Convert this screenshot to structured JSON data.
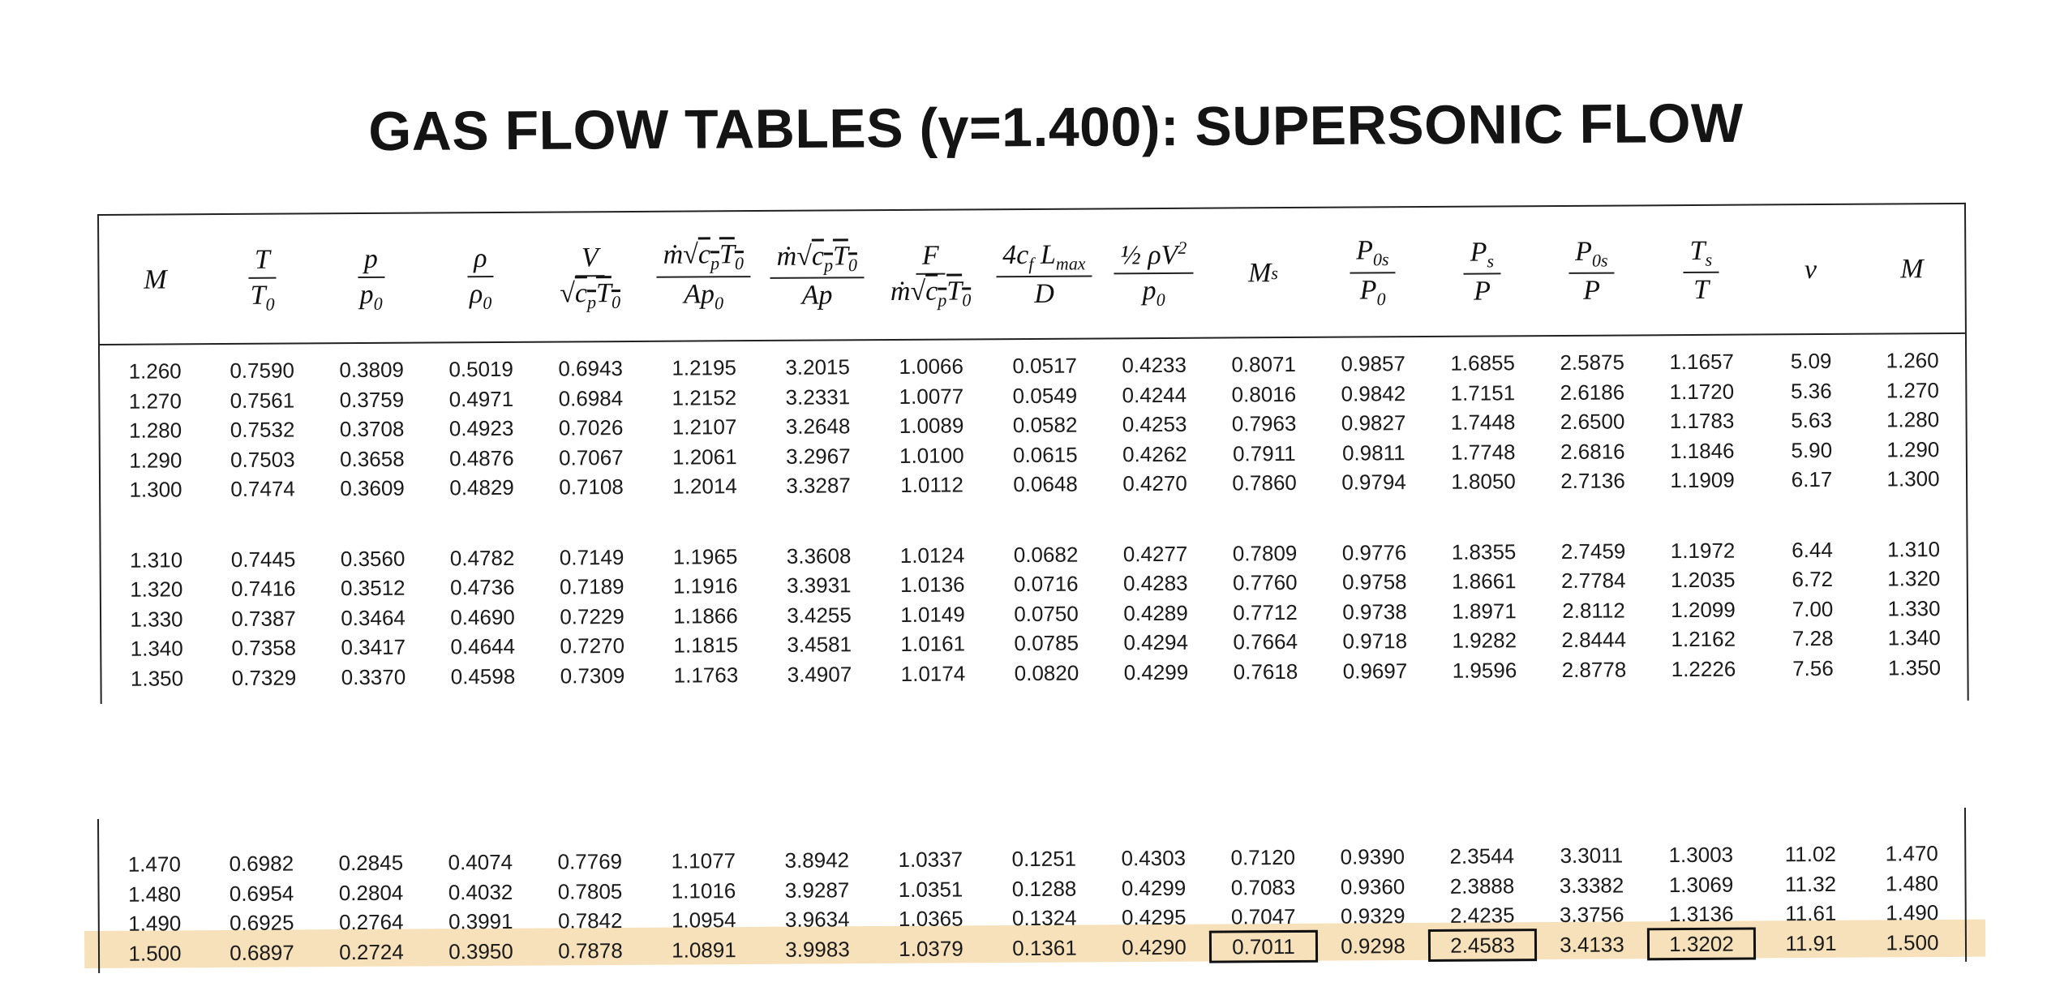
{
  "title": "GAS FLOW TABLES (γ=1.400): SUPERSONIC FLOW",
  "columns": [
    "M",
    "T/T0",
    "p/p0",
    "ρ/ρ0",
    "V/√(cpT0)",
    "ṁ√(cpT0)/(Ap0)",
    "ṁ√(cpT0)/(Ap)",
    "F/(ṁ√(cpT0))",
    "4cf Lmax/D",
    "(1/2)ρV²/p0",
    "Ms",
    "P0s/P0",
    "Ps/P",
    "P0s/P",
    "Ts/T",
    "ν",
    "M"
  ],
  "upper_rows": [
    [
      "1.260",
      "0.7590",
      "0.3809",
      "0.5019",
      "0.6943",
      "1.2195",
      "3.2015",
      "1.0066",
      "0.0517",
      "0.4233",
      "0.8071",
      "0.9857",
      "1.6855",
      "2.5875",
      "1.1657",
      "5.09",
      "1.260"
    ],
    [
      "1.270",
      "0.7561",
      "0.3759",
      "0.4971",
      "0.6984",
      "1.2152",
      "3.2331",
      "1.0077",
      "0.0549",
      "0.4244",
      "0.8016",
      "0.9842",
      "1.7151",
      "2.6186",
      "1.1720",
      "5.36",
      "1.270"
    ],
    [
      "1.280",
      "0.7532",
      "0.3708",
      "0.4923",
      "0.7026",
      "1.2107",
      "3.2648",
      "1.0089",
      "0.0582",
      "0.4253",
      "0.7963",
      "0.9827",
      "1.7448",
      "2.6500",
      "1.1783",
      "5.63",
      "1.280"
    ],
    [
      "1.290",
      "0.7503",
      "0.3658",
      "0.4876",
      "0.7067",
      "1.2061",
      "3.2967",
      "1.0100",
      "0.0615",
      "0.4262",
      "0.7911",
      "0.9811",
      "1.7748",
      "2.6816",
      "1.1846",
      "5.90",
      "1.290"
    ],
    [
      "1.300",
      "0.7474",
      "0.3609",
      "0.4829",
      "0.7108",
      "1.2014",
      "3.3287",
      "1.0112",
      "0.0648",
      "0.4270",
      "0.7860",
      "0.9794",
      "1.8050",
      "2.7136",
      "1.1909",
      "6.17",
      "1.300"
    ],
    [
      "1.310",
      "0.7445",
      "0.3560",
      "0.4782",
      "0.7149",
      "1.1965",
      "3.3608",
      "1.0124",
      "0.0682",
      "0.4277",
      "0.7809",
      "0.9776",
      "1.8355",
      "2.7459",
      "1.1972",
      "6.44",
      "1.310"
    ],
    [
      "1.320",
      "0.7416",
      "0.3512",
      "0.4736",
      "0.7189",
      "1.1916",
      "3.3931",
      "1.0136",
      "0.0716",
      "0.4283",
      "0.7760",
      "0.9758",
      "1.8661",
      "2.7784",
      "1.2035",
      "6.72",
      "1.320"
    ],
    [
      "1.330",
      "0.7387",
      "0.3464",
      "0.4690",
      "0.7229",
      "1.1866",
      "3.4255",
      "1.0149",
      "0.0750",
      "0.4289",
      "0.7712",
      "0.9738",
      "1.8971",
      "2.8112",
      "1.2099",
      "7.00",
      "1.330"
    ],
    [
      "1.340",
      "0.7358",
      "0.3417",
      "0.4644",
      "0.7270",
      "1.1815",
      "3.4581",
      "1.0161",
      "0.0785",
      "0.4294",
      "0.7664",
      "0.9718",
      "1.9282",
      "2.8444",
      "1.2162",
      "7.28",
      "1.340"
    ],
    [
      "1.350",
      "0.7329",
      "0.3370",
      "0.4598",
      "0.7309",
      "1.1763",
      "3.4907",
      "1.0174",
      "0.0820",
      "0.4299",
      "0.7618",
      "0.9697",
      "1.9596",
      "2.8778",
      "1.2226",
      "7.56",
      "1.350"
    ]
  ],
  "lower_rows": [
    [
      "1.470",
      "0.6982",
      "0.2845",
      "0.4074",
      "0.7769",
      "1.1077",
      "3.8942",
      "1.0337",
      "0.1251",
      "0.4303",
      "0.7120",
      "0.9390",
      "2.3544",
      "3.3011",
      "1.3003",
      "11.02",
      "1.470"
    ],
    [
      "1.480",
      "0.6954",
      "0.2804",
      "0.4032",
      "0.7805",
      "1.1016",
      "3.9287",
      "1.0351",
      "0.1288",
      "0.4299",
      "0.7083",
      "0.9360",
      "2.3888",
      "3.3382",
      "1.3069",
      "11.32",
      "1.480"
    ],
    [
      "1.490",
      "0.6925",
      "0.2764",
      "0.3991",
      "0.7842",
      "1.0954",
      "3.9634",
      "1.0365",
      "0.1324",
      "0.4295",
      "0.7047",
      "0.9329",
      "2.4235",
      "3.3756",
      "1.3136",
      "11.61",
      "1.490"
    ],
    [
      "1.500",
      "0.6897",
      "0.2724",
      "0.3950",
      "0.7878",
      "1.0891",
      "3.9983",
      "1.0379",
      "0.1361",
      "0.4290",
      "0.7011",
      "0.9298",
      "2.4583",
      "3.4133",
      "1.3202",
      "11.91",
      "1.500"
    ]
  ],
  "highlighted_row": "1.500",
  "boxed_columns": [
    "Ms",
    "Ps/P",
    "Ts/T"
  ],
  "colors": {
    "highlight": "#f6e1bb",
    "ink": "#141414"
  }
}
